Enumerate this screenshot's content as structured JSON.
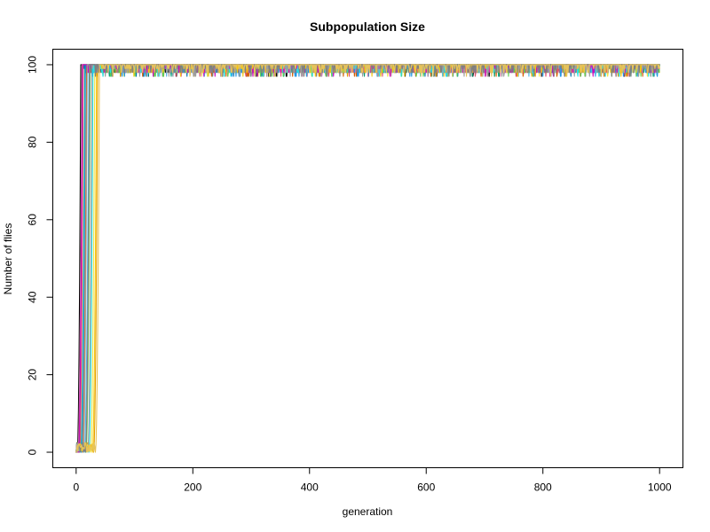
{
  "chart_data": {
    "type": "line",
    "title": "Subpopulation Size",
    "xlabel": "generation",
    "ylabel": "Number of flies",
    "xlim": [
      -40,
      1040
    ],
    "ylim": [
      -4,
      104
    ],
    "x_ticks": [
      0,
      200,
      400,
      600,
      800,
      1000
    ],
    "y_ticks": [
      0,
      20,
      40,
      60,
      80,
      100
    ],
    "grid": false,
    "legend": "none",
    "x_max": 1000,
    "carrying_capacity": 100,
    "series": [
      {
        "color": "#000000",
        "rise_start": 2,
        "rise_end": 8
      },
      {
        "color": "#E69F00",
        "rise_start": 30,
        "rise_end": 37
      },
      {
        "color": "#56B4E9",
        "rise_start": 14,
        "rise_end": 22
      },
      {
        "color": "#009E73",
        "rise_start": 8,
        "rise_end": 15
      },
      {
        "color": "#F0E442",
        "rise_start": 25,
        "rise_end": 32
      },
      {
        "color": "#0072B2",
        "rise_start": 5,
        "rise_end": 12
      },
      {
        "color": "#D55E00",
        "rise_start": 11,
        "rise_end": 18
      },
      {
        "color": "#CC79A7",
        "rise_start": 3,
        "rise_end": 10
      },
      {
        "color": "#999999",
        "rise_start": 20,
        "rise_end": 27
      },
      {
        "color": "#DF536B",
        "rise_start": 6,
        "rise_end": 12
      },
      {
        "color": "#61D04F",
        "rise_start": 17,
        "rise_end": 24
      },
      {
        "color": "#2297E6",
        "rise_start": 9,
        "rise_end": 16
      },
      {
        "color": "#28E2E5",
        "rise_start": 22,
        "rise_end": 29
      },
      {
        "color": "#CD0BBC",
        "rise_start": 4,
        "rise_end": 11
      },
      {
        "color": "#F5C710",
        "rise_start": 28,
        "rise_end": 35
      },
      {
        "color": "#9E9E9E",
        "rise_start": 12,
        "rise_end": 19
      },
      {
        "color": "#7F7F7F",
        "rise_start": 16,
        "rise_end": 23
      },
      {
        "color": "#E6C35A",
        "rise_start": 33,
        "rise_end": 40
      }
    ]
  }
}
